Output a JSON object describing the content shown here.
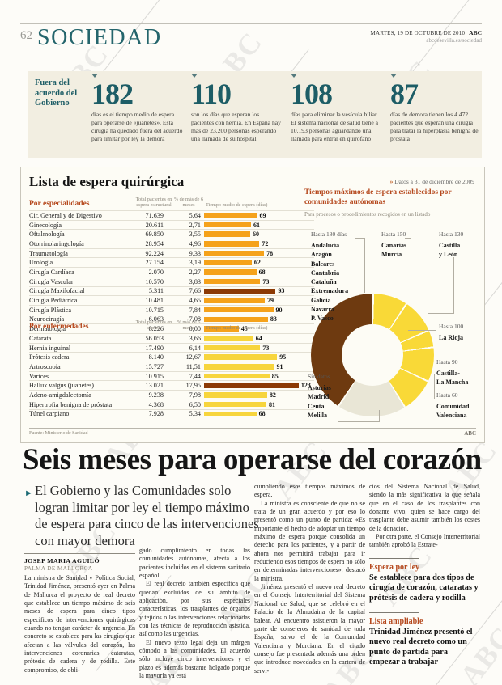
{
  "header": {
    "page_number": "62",
    "section": "SOCIEDAD",
    "date_line": "MARTES, 19 DE OCTUBRE DE 2010",
    "brand": "ABC",
    "url": "abcdesevilla.es/sociedad"
  },
  "stats_strip": {
    "label": "Fuera del acuerdo del Gobierno",
    "stats": [
      {
        "number": "182",
        "text": "días es el tiempo medio de espera para operarse de «juanetes». Esta cirugía ha quedado fuera del acuerdo para limitar por ley la demora"
      },
      {
        "number": "110",
        "text": "son los días que esperan los pacientes con hernia. En España hay más de 23.200 personas esperando una llamada de su hospital"
      },
      {
        "number": "108",
        "text": "días para eliminar la vesícula biliar. El sistema nacional de salud tiene a 10.193 personas aguardando una llamada para entrar en quirófano"
      },
      {
        "number": "87",
        "text": "días de demora tienen los 4.472 pacientes que esperan una cirugía para tratar la hiperplasia benigna de próstata"
      }
    ]
  },
  "infographic": {
    "title": "Lista de espera quirúrgica",
    "date_note_chevron": "»",
    "date_note": "Datos a 31 de diciembre de 2009",
    "source": "Fuente: Ministerio de Sanidad",
    "credit": "ABC",
    "specialties": {
      "heading": "Por especialidades",
      "col_patients": "Total pacientes en espera estructural",
      "col_pct": "% de más de 6 meses",
      "col_days": "Tiempo medio de espera (días)",
      "bar_color": "#f5a21b",
      "highlight_color": "#8c3a05",
      "rows": [
        {
          "name": "Cir. General y de Digestivo",
          "patients": "71.639",
          "pct": "5,64",
          "days": 69,
          "highlight": false
        },
        {
          "name": "Ginecología",
          "patients": "20.611",
          "pct": "2,71",
          "days": 61,
          "highlight": false
        },
        {
          "name": "Oftalmología",
          "patients": "69.850",
          "pct": "3,55",
          "days": 60,
          "highlight": false
        },
        {
          "name": "Otorrinolaringología",
          "patients": "28.954",
          "pct": "4,96",
          "days": 72,
          "highlight": false
        },
        {
          "name": "Traumatología",
          "patients": "92.224",
          "pct": "9,33",
          "days": 78,
          "highlight": false
        },
        {
          "name": "Urología",
          "patients": "27.154",
          "pct": "3,19",
          "days": 62,
          "highlight": false
        },
        {
          "name": "Cirugía Cardíaca",
          "patients": "2.070",
          "pct": "2,27",
          "days": 68,
          "highlight": false
        },
        {
          "name": "Cirugía Vascular",
          "patients": "10.570",
          "pct": "3,83",
          "days": 73,
          "highlight": false
        },
        {
          "name": "Cirugía Maxilofacial",
          "patients": "5.311",
          "pct": "7,66",
          "days": 93,
          "highlight": true
        },
        {
          "name": "Cirugía Pediátrica",
          "patients": "10.481",
          "pct": "4,65",
          "days": 79,
          "highlight": false
        },
        {
          "name": "Cirugía Plástica",
          "patients": "10.715",
          "pct": "7,84",
          "days": 90,
          "highlight": false
        },
        {
          "name": "Neurocirugía",
          "patients": "6.063",
          "pct": "7,08",
          "days": 83,
          "highlight": false
        },
        {
          "name": "Dermatología",
          "patients": "8.226",
          "pct": "0,00",
          "days": 45,
          "highlight": false
        }
      ]
    },
    "diseases": {
      "heading": "Por enfermedades",
      "col_patients": "Total pacientes en espera",
      "col_pct": "% más de 6 meses",
      "col_days": "Tiempo medio de espera (días)",
      "bar_color": "#f7d53d",
      "highlight_color": "#8c3a05",
      "rows": [
        {
          "name": "Catarata",
          "patients": "56.053",
          "pct": "3,66",
          "days": 64,
          "highlight": false
        },
        {
          "name": "Hernia inguinal",
          "patients": "17.490",
          "pct": "6,14",
          "days": 73,
          "highlight": false
        },
        {
          "name": "Prótesis cadera",
          "patients": "8.140",
          "pct": "12,67",
          "days": 95,
          "highlight": false
        },
        {
          "name": "Artroscopia",
          "patients": "15.727",
          "pct": "11,51",
          "days": 91,
          "highlight": false
        },
        {
          "name": "Varices",
          "patients": "10.915",
          "pct": "7,44",
          "days": 85,
          "highlight": false
        },
        {
          "name": "Hallux valgus (juanetes)",
          "patients": "13.021",
          "pct": "17,95",
          "days": 123,
          "highlight": true
        },
        {
          "name": "Adeno-amigdalectomía",
          "patients": "9.238",
          "pct": "7,98",
          "days": 82,
          "highlight": false
        },
        {
          "name": "Hipertrofia benigna de próstata",
          "patients": "4.368",
          "pct": "6,50",
          "days": 81,
          "highlight": false
        },
        {
          "name": "Túnel carpiano",
          "patients": "7.928",
          "pct": "5,34",
          "days": 68,
          "highlight": false
        }
      ]
    },
    "donut": {
      "title": "Tiempos máximos de espera establecidos por comunidades autónomas",
      "subtitle": "Para procesos o procedimientos recogidos en un listado",
      "groups": [
        {
          "label": "Hasta 180 días",
          "regions": [
            "Andalucía",
            "Aragón",
            "Baleares",
            "Cantabria",
            "Cataluña",
            "Extremadura",
            "Galicia",
            "Navarra",
            "P. Vasco"
          ],
          "color": "#6e3a10"
        },
        {
          "label": "Hasta 150",
          "regions": [
            "Canarias",
            "Murcia"
          ],
          "color": "#f9d937"
        },
        {
          "label": "Hasta 130",
          "regions": [
            "Castilla",
            "y León"
          ],
          "color": "#f9d937"
        },
        {
          "label": "Hasta 100",
          "regions": [
            "La Rioja"
          ],
          "color": "#f9d937"
        },
        {
          "label": "Hasta 90",
          "regions": [
            "Castilla-",
            "La Mancha"
          ],
          "color": "#f9d937"
        },
        {
          "label": "Hasta 60",
          "regions": [
            "Comunidad",
            "Valenciana"
          ],
          "color": "#f9d937"
        },
        {
          "label": "Sin datos",
          "regions": [
            "Asturias",
            "Madrid",
            "Ceuta",
            "Melilla"
          ],
          "color": "#e9e6d6"
        }
      ]
    }
  },
  "chart_data": [
    {
      "type": "bar",
      "title": "Por especialidades — Tiempo medio de espera (días)",
      "categories": [
        "Cir. General y de Digestivo",
        "Ginecología",
        "Oftalmología",
        "Otorrinolaringología",
        "Traumatología",
        "Urología",
        "Cirugía Cardíaca",
        "Cirugía Vascular",
        "Cirugía Maxilofacial",
        "Cirugía Pediátrica",
        "Cirugía Plástica",
        "Neurocirugía",
        "Dermatología"
      ],
      "values": [
        69,
        61,
        60,
        72,
        78,
        62,
        68,
        73,
        93,
        79,
        90,
        83,
        45
      ]
    },
    {
      "type": "bar",
      "title": "Por enfermedades — Tiempo medio de espera (días)",
      "categories": [
        "Catarata",
        "Hernia inguinal",
        "Prótesis cadera",
        "Artroscopia",
        "Varices",
        "Hallux valgus (juanetes)",
        "Adeno-amigdalectomía",
        "Hipertrofia benigna de próstata",
        "Túnel carpiano"
      ],
      "values": [
        64,
        73,
        95,
        91,
        85,
        123,
        82,
        81,
        68
      ]
    },
    {
      "type": "pie",
      "title": "Tiempos máximos de espera establecidos por comunidades autónomas",
      "categories": [
        "Hasta 180 días",
        "Hasta 150",
        "Hasta 130",
        "Hasta 100",
        "Hasta 90",
        "Hasta 60",
        "Sin datos"
      ],
      "values": [
        9,
        2,
        1,
        1,
        1,
        1,
        4
      ]
    }
  ],
  "article": {
    "headline": "Seis meses para operarse del corazón",
    "bullet": "►",
    "standfirst": "El Gobierno y las Comunidades solo logran limitar por ley el tiempo máximo de espera para cinco de las intervenciones con mayor demora",
    "byline": "JOSEP MARIA AGUILÓ",
    "dateline": "PALMA DE MALLORCA",
    "col1": [
      "La ministra de Sanidad y Política Social, Trinidad Jiménez, presentó ayer en Palma de Mallorca el proyecto de real decreto que establece un tiempo máximo de seis meses de espera para cinco tipos específicos de intervenciones quirúrgicas cuando no tengan carácter de urgencia. En concreto se establece para las cirugías que afectan a las válvulas del corazón, las intervenciones coronarias, cataratas, prótesis de cadera y de rodilla. Este compromiso, de obli-"
    ],
    "col2": [
      "gado cumplimiento en todas las comunidades autónomas, afecta a los pacientes incluidos en el sistema sanitario español.",
      "El real decreto también especifica que quedan excluidos de su ámbito de aplicación, por sus especiales características, los trasplantes de órganos y tejidos o las intervenciones relacionadas con las técnicas de reproducción asistida, así como las urgencias.",
      "El nuevo texto legal deja un márgen cómodo a las comunidades. El acuerdo sólo incluye cinco intervenciones y el plazo es además bastante holgado porque la mayoría ya está"
    ],
    "col3": [
      "cumpliendo esos tiempos máximos de espera.",
      "La ministra es consciente de que no se trata de un gran acuerdo y por eso lo presentó como un punto de partida: «Es importante el hecho de adoptar un tiempo máximo de espera porque consolida un derecho para los pacientes, y a partir de ahora nos permitirá trabajar para ir reduciendo esos tiempos de espera no sólo en determinadas intervenciones», destacó la ministra.",
      "Jiménez presentó el nuevo real decreto en el Consejo Interterritorial del Sistema Nacional de Salud, que se celebró en el Palacio de la Almudaina de la capital balear. Al encuentro asistieron la mayor parte de consejeros de sanidad de toda España, salvo el de la Comunidad Valenciana y Murciana. En el citado consejo fue presentada además una orden que introduce novedades en la cartera de servi-"
    ],
    "col4": [
      "cios del Sistema Nacional de Salud, siendo la más significativa la que señala que en el caso de los trasplantes con donante vivo, quien se hace cargo del trasplante debe asumir también los costes de la donación.",
      "Por otra parte, el Consejo Interterritorial también aprobó la Estrate-"
    ],
    "sidebar": [
      {
        "heading": "Espera por ley",
        "text": "Se establece para dos tipos de cirugía de corazón, cataratas y prótesis de cadera y rodilla"
      },
      {
        "heading": "Lista ampliable",
        "text": "Trinidad Jiménez presentó el nuevo real decreto como un punto de partida para empezar a trabajar"
      }
    ]
  },
  "watermark": "ABC"
}
